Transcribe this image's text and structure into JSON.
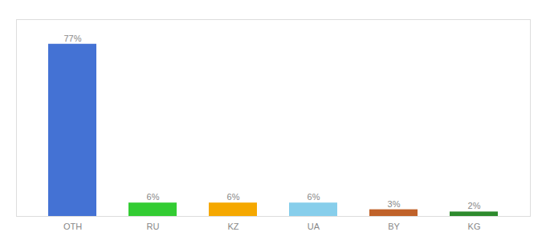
{
  "chart_data": {
    "type": "bar",
    "categories": [
      "OTH",
      "RU",
      "KZ",
      "UA",
      "BY",
      "KG"
    ],
    "values": [
      77,
      6,
      6,
      6,
      3,
      2
    ],
    "colors": [
      "#4472d4",
      "#33cc33",
      "#f5a800",
      "#87ceeb",
      "#c0622a",
      "#2d8a2d"
    ],
    "data_labels": true,
    "value_labels": [
      "77%",
      "6%",
      "6%",
      "6%",
      "3%",
      "2%"
    ],
    "ylim": [
      0,
      88
    ],
    "tick_labels": "x",
    "grid": false
  }
}
